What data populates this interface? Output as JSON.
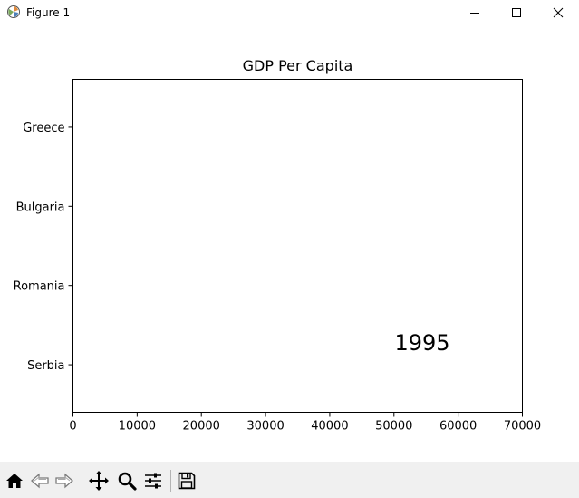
{
  "window": {
    "title": "Figure 1"
  },
  "chart_data": {
    "type": "bar",
    "orientation": "horizontal",
    "title": "GDP Per Capita",
    "categories": [
      "Greece",
      "Bulgaria",
      "Romania",
      "Serbia"
    ],
    "values": [
      0,
      0,
      0,
      0
    ],
    "xlim": [
      0,
      70000
    ],
    "xticks": [
      "0",
      "10000",
      "20000",
      "30000",
      "40000",
      "50000",
      "60000",
      "70000"
    ],
    "annotation": "1995",
    "grid": false
  },
  "toolbar": {
    "buttons": [
      {
        "name": "home-icon",
        "label": "Home"
      },
      {
        "name": "back-icon",
        "label": "Back"
      },
      {
        "name": "forward-icon",
        "label": "Forward"
      },
      {
        "name": "pan-icon",
        "label": "Pan"
      },
      {
        "name": "zoom-icon",
        "label": "Zoom"
      },
      {
        "name": "configure-subplots-icon",
        "label": "Subplots"
      },
      {
        "name": "save-icon",
        "label": "Save"
      }
    ]
  }
}
